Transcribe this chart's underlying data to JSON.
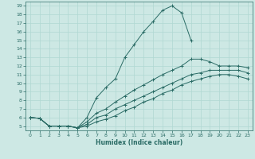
{
  "xlabel": "Humidex (Indice chaleur)",
  "ylabel": "",
  "bg_color": "#cde8e4",
  "grid_color": "#b0d8d2",
  "line_color": "#2a6b65",
  "xlim": [
    -0.5,
    23.5
  ],
  "ylim": [
    4.5,
    19.5
  ],
  "xticks": [
    0,
    1,
    2,
    3,
    4,
    5,
    6,
    7,
    8,
    9,
    10,
    11,
    12,
    13,
    14,
    15,
    16,
    17,
    18,
    19,
    20,
    21,
    22,
    23
  ],
  "yticks": [
    5,
    6,
    7,
    8,
    9,
    10,
    11,
    12,
    13,
    14,
    15,
    16,
    17,
    18,
    19
  ],
  "curves": [
    {
      "x": [
        0,
        1,
        2,
        3,
        4,
        5,
        6,
        7,
        8,
        9,
        10,
        11,
        12,
        13,
        14,
        15,
        16,
        17
      ],
      "y": [
        6.0,
        5.9,
        5.0,
        5.0,
        5.0,
        4.8,
        6.0,
        8.3,
        9.5,
        10.5,
        13.0,
        14.5,
        16.0,
        17.2,
        18.5,
        19.0,
        18.2,
        15.0
      ]
    },
    {
      "x": [
        0,
        1,
        2,
        3,
        4,
        5,
        6,
        7,
        8,
        9,
        10,
        11,
        12,
        13,
        14,
        15,
        16,
        17,
        18,
        19,
        20,
        21,
        22,
        23
      ],
      "y": [
        6.0,
        5.9,
        5.0,
        5.0,
        5.0,
        4.8,
        5.5,
        6.5,
        7.0,
        7.8,
        8.5,
        9.2,
        9.8,
        10.4,
        11.0,
        11.5,
        12.0,
        12.8,
        12.8,
        12.5,
        12.0,
        12.0,
        12.0,
        11.8
      ]
    },
    {
      "x": [
        0,
        1,
        2,
        3,
        4,
        5,
        6,
        7,
        8,
        9,
        10,
        11,
        12,
        13,
        14,
        15,
        16,
        17,
        18,
        19,
        20,
        21,
        22,
        23
      ],
      "y": [
        6.0,
        5.9,
        5.0,
        5.0,
        5.0,
        4.8,
        5.2,
        6.0,
        6.3,
        7.0,
        7.5,
        8.0,
        8.5,
        9.0,
        9.5,
        10.0,
        10.5,
        11.0,
        11.2,
        11.5,
        11.5,
        11.5,
        11.5,
        11.2
      ]
    },
    {
      "x": [
        0,
        1,
        2,
        3,
        4,
        5,
        6,
        7,
        8,
        9,
        10,
        11,
        12,
        13,
        14,
        15,
        16,
        17,
        18,
        19,
        20,
        21,
        22,
        23
      ],
      "y": [
        6.0,
        5.9,
        5.0,
        5.0,
        5.0,
        4.8,
        5.0,
        5.5,
        5.8,
        6.2,
        6.8,
        7.2,
        7.8,
        8.2,
        8.8,
        9.2,
        9.8,
        10.2,
        10.5,
        10.8,
        11.0,
        11.0,
        10.8,
        10.5
      ]
    }
  ]
}
